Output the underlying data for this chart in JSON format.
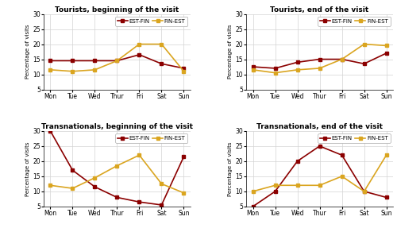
{
  "days": [
    "Mon",
    "Tue",
    "Wed",
    "Thur",
    "Fri",
    "Sat",
    "Sun"
  ],
  "tourists_begin": {
    "EST-FIN": [
      14.5,
      14.5,
      14.5,
      14.5,
      16.5,
      13.5,
      12.0
    ],
    "FIN-EST": [
      11.5,
      11.0,
      11.5,
      14.5,
      20.0,
      20.0,
      11.0
    ]
  },
  "tourists_end": {
    "EST-FIN": [
      12.5,
      12.0,
      14.0,
      15.0,
      15.0,
      13.5,
      17.0
    ],
    "FIN-EST": [
      11.5,
      10.5,
      11.5,
      12.0,
      15.0,
      20.0,
      19.5
    ]
  },
  "transnationals_begin": {
    "EST-FIN": [
      30.0,
      17.0,
      11.5,
      8.0,
      6.5,
      5.5,
      21.5
    ],
    "FIN-EST": [
      12.0,
      11.0,
      14.5,
      18.5,
      22.0,
      12.5,
      9.5
    ]
  },
  "transnationals_end": {
    "EST-FIN": [
      5.0,
      10.0,
      20.0,
      25.0,
      22.0,
      10.0,
      8.0
    ],
    "FIN-EST": [
      10.0,
      12.0,
      12.0,
      12.0,
      15.0,
      10.0,
      22.0
    ]
  },
  "color_EST_FIN": "#8B0000",
  "color_FIN_EST": "#DAA520",
  "ylim": [
    5,
    30
  ],
  "yticks": [
    5,
    10,
    15,
    20,
    25,
    30
  ],
  "titles": [
    "Tourists, beginning of the visit",
    "Tourists, end of the visit",
    "Transnationals, beginning of the visit",
    "Transnationals, end of the visit"
  ],
  "ylabel": "Percentage of visits",
  "marker": "s",
  "markersize": 3,
  "linewidth": 1.2
}
